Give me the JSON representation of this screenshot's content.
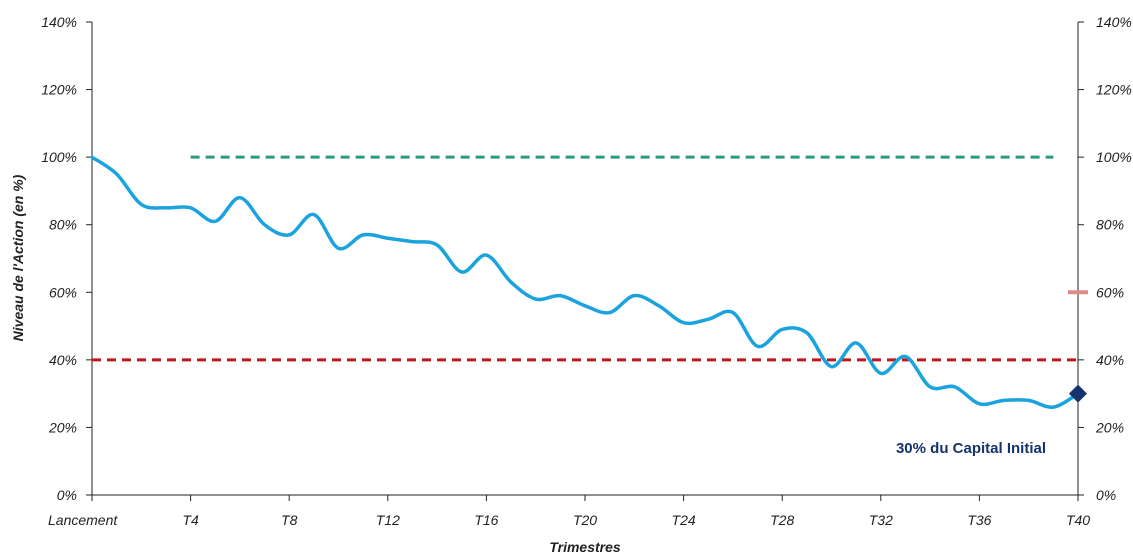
{
  "chart_data": {
    "type": "line",
    "title": "",
    "xlabel": "Trimestres",
    "ylabel": "Niveau de l'Action (en %)",
    "ylim": [
      0,
      140
    ],
    "y_ticks": [
      "0%",
      "20%",
      "40%",
      "60%",
      "80%",
      "100%",
      "120%",
      "140%"
    ],
    "y_tick_values": [
      0,
      20,
      40,
      60,
      80,
      100,
      120,
      140
    ],
    "x_ticks": [
      {
        "label": "Lancement",
        "q": 0
      },
      {
        "label": "T4",
        "q": 4
      },
      {
        "label": "T8",
        "q": 8
      },
      {
        "label": "T12",
        "q": 12
      },
      {
        "label": "T16",
        "q": 16
      },
      {
        "label": "T20",
        "q": 20
      },
      {
        "label": "T24",
        "q": 24
      },
      {
        "label": "T28",
        "q": 28
      },
      {
        "label": "T32",
        "q": 32
      },
      {
        "label": "T36",
        "q": 36
      },
      {
        "label": "T40",
        "q": 40
      }
    ],
    "xlim": [
      0,
      40
    ],
    "grid": false,
    "series": [
      {
        "color": "#1aa3de",
        "x": [
          0,
          1,
          2,
          3,
          4,
          5,
          6,
          7,
          8,
          9,
          10,
          11,
          12,
          13,
          14,
          15,
          16,
          17,
          18,
          19,
          20,
          21,
          22,
          23,
          24,
          25,
          26,
          27,
          28,
          29,
          30,
          31,
          32,
          33,
          34,
          35,
          36,
          37,
          38,
          39,
          40
        ],
        "y": [
          100,
          95,
          86,
          85,
          85,
          81,
          88,
          80,
          77,
          83,
          73,
          77,
          76,
          75,
          74,
          66,
          71,
          63,
          58,
          59,
          56,
          54,
          59,
          56,
          51,
          52,
          54,
          44,
          49,
          48,
          38,
          45,
          36,
          41,
          32,
          32,
          27,
          28,
          28,
          26,
          30
        ]
      }
    ],
    "reference_lines": [
      {
        "y": 100,
        "x_start": 4,
        "x_end": 39,
        "color": "#2a9a7e",
        "style": "dashed"
      },
      {
        "y": 40,
        "x_start": 0,
        "x_end": 40,
        "color": "#c0161c",
        "style": "dashed"
      }
    ],
    "right_axis_marker": {
      "y": 60,
      "color": "#dc8c88"
    },
    "end_point": {
      "x": 40,
      "y": 30,
      "color": "#14336e",
      "marker": "diamond"
    },
    "annotation": {
      "text": "30% du Capital Initial",
      "color": "#14336e"
    },
    "axis_color": "#222222"
  }
}
